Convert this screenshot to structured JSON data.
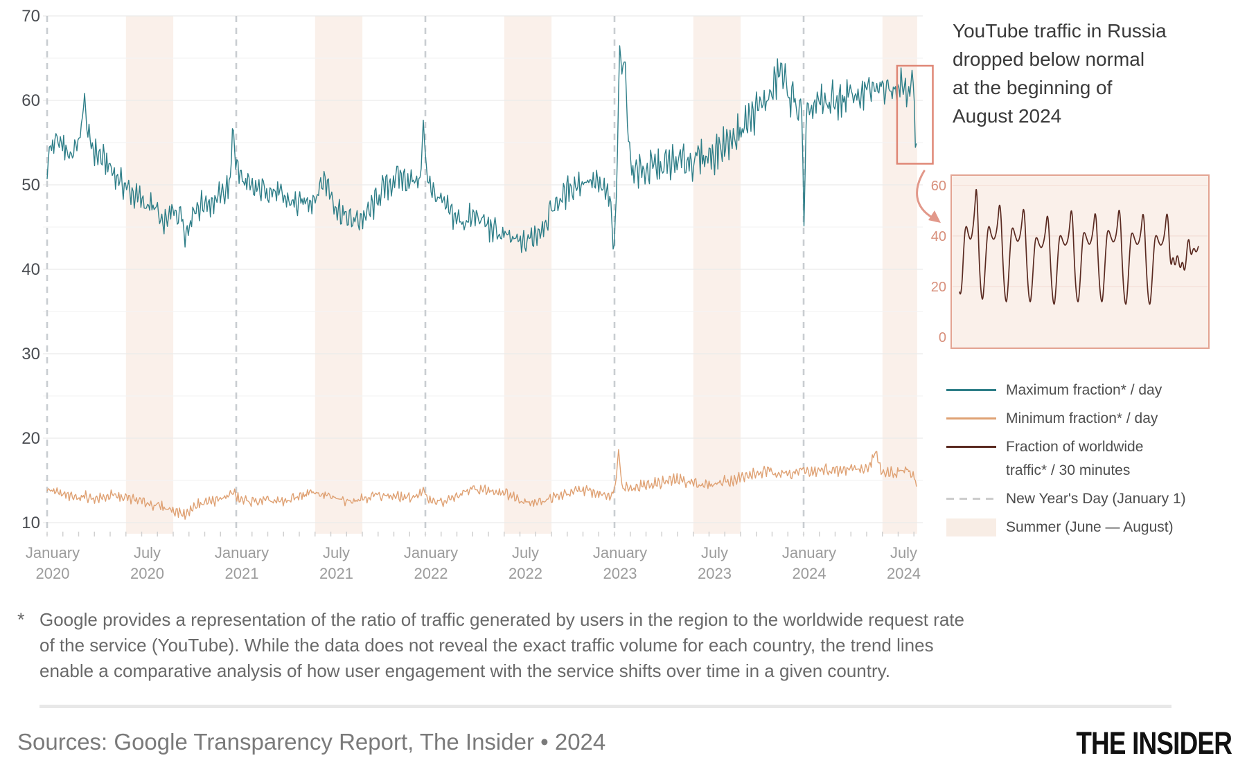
{
  "annotation": {
    "lines": [
      "YouTube traffic in Russia",
      "dropped below normal",
      "at the beginning of",
      "August 2024"
    ]
  },
  "legend": {
    "items": [
      {
        "type": "line",
        "color": "#2e7e88",
        "lines": [
          "Maximum fraction* / day"
        ]
      },
      {
        "type": "line",
        "color": "#dfa173",
        "lines": [
          "Minimum fraction* / day"
        ]
      },
      {
        "type": "line",
        "color": "#5a2a21",
        "lines": [
          "Fraction of worldwide",
          "traffic* / 30 minutes"
        ]
      },
      {
        "type": "dashed",
        "color": "#cccccc",
        "lines": [
          "New Year's Day (January 1)"
        ]
      },
      {
        "type": "band",
        "color": "#f8ede5",
        "lines": [
          "Summer (June — August)"
        ]
      }
    ]
  },
  "footnote": {
    "marker": "*",
    "lines": [
      "Google provides a representation of the ratio of traffic generated by users in the region to the worldwide request rate",
      "of the service (YouTube). While the data does not reveal the exact traffic volume for each country, the trend lines",
      "enable a comparative analysis of how user engagement with the service shifts over time in a given country."
    ]
  },
  "sources": "Sources: Google Transparency Report, The Insider • 2024",
  "logo": "THE INSIDER",
  "colors": {
    "max_line": "#2e7e88",
    "min_line": "#dfa173",
    "inset_line": "#5a2a21",
    "new_year_dash": "#c9cdd1",
    "summer_band": "#faf0ea",
    "grid_major": "#ebebeb",
    "grid_minor": "#f4f4f4",
    "month_tick": "#d0d0d0",
    "highlight_box": "#df8776",
    "arrow": "#e2988a",
    "inset_bg": "#faf0ea",
    "inset_border": "#e3a492",
    "inset_grid": "#f3ded5",
    "inset_tick_text": "#d8907c",
    "y_tick_text": "#4a4d52",
    "x_tick_text": "#9c9c9c"
  },
  "chart_data": [
    {
      "type": "line",
      "title": "YouTube traffic in Russia (fraction of worldwide traffic), January 2020 – August 2024",
      "xlabel": "",
      "ylabel": "",
      "ylim": [
        10,
        70
      ],
      "y_ticks": [
        70,
        60,
        50,
        40,
        30,
        20,
        10
      ],
      "x_unit": "months since 2020-01-01",
      "x_range": [
        0,
        55.2
      ],
      "x_ticks": [
        {
          "t": 0,
          "month": "January",
          "year": "2020"
        },
        {
          "t": 6,
          "month": "July",
          "year": "2020"
        },
        {
          "t": 12,
          "month": "January",
          "year": "2021"
        },
        {
          "t": 18,
          "month": "July",
          "year": "2021"
        },
        {
          "t": 24,
          "month": "January",
          "year": "2022"
        },
        {
          "t": 30,
          "month": "July",
          "year": "2022"
        },
        {
          "t": 36,
          "month": "January",
          "year": "2023"
        },
        {
          "t": 42,
          "month": "July",
          "year": "2023"
        },
        {
          "t": 48,
          "month": "January",
          "year": "2024"
        },
        {
          "t": 54,
          "month": "July",
          "year": "2024"
        }
      ],
      "new_year_lines_t": [
        0,
        12,
        24,
        36,
        48
      ],
      "summer_bands_t": [
        [
          5,
          8
        ],
        [
          17,
          20
        ],
        [
          29,
          32
        ],
        [
          41,
          44
        ],
        [
          53,
          55.2
        ]
      ],
      "highlight_box": {
        "t0": 53.93,
        "t1": 56.2,
        "v0": 52.5,
        "v1": 64.1
      },
      "series": [
        {
          "name": "Maximum fraction* / day",
          "color": "#2e7e88",
          "noise_amp": 1.7,
          "noise_amp_late": 2.3,
          "late_from": 36,
          "anchors": [
            [
              0,
              51
            ],
            [
              0.15,
              54.5
            ],
            [
              0.8,
              55
            ],
            [
              1.5,
              53.5
            ],
            [
              2.1,
              55.5
            ],
            [
              2.35,
              60.5
            ],
            [
              2.6,
              55.5
            ],
            [
              3,
              54
            ],
            [
              3.8,
              52.5
            ],
            [
              4.6,
              50.5
            ],
            [
              5.4,
              49
            ],
            [
              6.2,
              47.8
            ],
            [
              7,
              47
            ],
            [
              7.25,
              44.8
            ],
            [
              7.8,
              46.5
            ],
            [
              8.5,
              46.8
            ],
            [
              8.8,
              44
            ],
            [
              9.3,
              47.2
            ],
            [
              10,
              47.8
            ],
            [
              10.8,
              48.3
            ],
            [
              11.4,
              49.6
            ],
            [
              11.65,
              50.5
            ],
            [
              11.78,
              58
            ],
            [
              11.95,
              52.5
            ],
            [
              12.4,
              50.5
            ],
            [
              13,
              49.3
            ],
            [
              14,
              49.6
            ],
            [
              15,
              48.4
            ],
            [
              16,
              47.6
            ],
            [
              17,
              48.6
            ],
            [
              17.6,
              50.8
            ],
            [
              18.4,
              47.2
            ],
            [
              19.3,
              45.6
            ],
            [
              20.3,
              46.4
            ],
            [
              21.3,
              49.4
            ],
            [
              22.3,
              51
            ],
            [
              23.2,
              50.4
            ],
            [
              23.7,
              50.8
            ],
            [
              23.87,
              57.5
            ],
            [
              24.05,
              52
            ],
            [
              24.5,
              49
            ],
            [
              25.4,
              47
            ],
            [
              26.3,
              45.6
            ],
            [
              27.3,
              46.2
            ],
            [
              28.3,
              44.6
            ],
            [
              29.3,
              43.6
            ],
            [
              30.3,
              43
            ],
            [
              31.3,
              44.8
            ],
            [
              32.3,
              47.8
            ],
            [
              33.3,
              49.8
            ],
            [
              34.3,
              50.6
            ],
            [
              35.2,
              49.6
            ],
            [
              35.75,
              48.2
            ],
            [
              35.95,
              41.5
            ],
            [
              36.15,
              50
            ],
            [
              36.32,
              67
            ],
            [
              36.5,
              62.5
            ],
            [
              36.63,
              66.5
            ],
            [
              36.85,
              56
            ],
            [
              37.1,
              52
            ],
            [
              37.8,
              51.6
            ],
            [
              38.6,
              52
            ],
            [
              39.5,
              52.4
            ],
            [
              40.4,
              52.8
            ],
            [
              41.3,
              53
            ],
            [
              42.3,
              53.8
            ],
            [
              43.3,
              55.2
            ],
            [
              44.3,
              57.2
            ],
            [
              45.2,
              59.2
            ],
            [
              46,
              60.8
            ],
            [
              46.5,
              63.8
            ],
            [
              47,
              61
            ],
            [
              47.6,
              59.2
            ],
            [
              47.9,
              58.5
            ],
            [
              48.02,
              44.5
            ],
            [
              48.18,
              58.8
            ],
            [
              48.9,
              59.4
            ],
            [
              49.8,
              59.8
            ],
            [
              50.7,
              60.3
            ],
            [
              51.6,
              60.8
            ],
            [
              52.5,
              61.2
            ],
            [
              53.4,
              61.8
            ],
            [
              54.2,
              62
            ],
            [
              54.8,
              61.6
            ],
            [
              55.0,
              62.2
            ],
            [
              55.06,
              55.2
            ],
            [
              55.12,
              53.5
            ],
            [
              55.2,
              54.6
            ]
          ]
        },
        {
          "name": "Minimum fraction* / day",
          "color": "#dfa173",
          "noise_amp": 0.6,
          "noise_amp_late": 0.7,
          "late_from": 36,
          "anchors": [
            [
              0,
              14
            ],
            [
              0.8,
              13.4
            ],
            [
              1.6,
              13
            ],
            [
              2.4,
              13.1
            ],
            [
              3.2,
              12.8
            ],
            [
              4,
              13.2
            ],
            [
              4.8,
              13
            ],
            [
              5.6,
              12.7
            ],
            [
              6.4,
              12.3
            ],
            [
              7.2,
              11.9
            ],
            [
              8,
              11.5
            ],
            [
              8.8,
              10.9
            ],
            [
              9.4,
              12.1
            ],
            [
              10.2,
              12.5
            ],
            [
              11,
              12.7
            ],
            [
              11.78,
              13.6
            ],
            [
              12.2,
              12.7
            ],
            [
              13,
              12.5
            ],
            [
              14,
              12.6
            ],
            [
              15,
              12.4
            ],
            [
              16,
              13.2
            ],
            [
              17,
              13.6
            ],
            [
              18,
              13
            ],
            [
              19,
              12.6
            ],
            [
              20,
              12.9
            ],
            [
              21,
              13.3
            ],
            [
              22,
              13.1
            ],
            [
              23,
              12.9
            ],
            [
              23.87,
              13.6
            ],
            [
              24.3,
              12.7
            ],
            [
              25.2,
              12.4
            ],
            [
              26.1,
              13.2
            ],
            [
              27,
              14
            ],
            [
              28,
              13.8
            ],
            [
              29,
              13.6
            ],
            [
              30,
              12.7
            ],
            [
              31,
              12.4
            ],
            [
              32,
              12.9
            ],
            [
              33,
              13.4
            ],
            [
              34,
              13.9
            ],
            [
              35,
              13.4
            ],
            [
              35.9,
              13.3
            ],
            [
              36.1,
              15
            ],
            [
              36.25,
              18.6
            ],
            [
              36.5,
              14.2
            ],
            [
              37.3,
              14.2
            ],
            [
              38.2,
              14.5
            ],
            [
              39.1,
              14.8
            ],
            [
              40,
              15.1
            ],
            [
              41,
              14.7
            ],
            [
              42,
              14.4
            ],
            [
              43,
              14.9
            ],
            [
              44,
              15.3
            ],
            [
              45,
              15.8
            ],
            [
              46,
              16.1
            ],
            [
              47,
              15.7
            ],
            [
              48.02,
              16.2
            ],
            [
              48.6,
              15.9
            ],
            [
              49.4,
              16.3
            ],
            [
              50.2,
              16
            ],
            [
              51,
              16.5
            ],
            [
              52,
              16.3
            ],
            [
              52.55,
              18.3
            ],
            [
              52.9,
              16.2
            ],
            [
              53.8,
              15.9
            ],
            [
              54.6,
              16.3
            ],
            [
              55.05,
              15
            ],
            [
              55.2,
              13.9
            ]
          ]
        }
      ]
    },
    {
      "type": "line",
      "name": "Fraction of worldwide traffic* / 30 minutes",
      "color": "#5a2a21",
      "ylim": [
        0,
        64
      ],
      "y_ticks": [
        60,
        40,
        20,
        0
      ],
      "x_range": [
        0,
        100
      ],
      "points": [
        [
          0,
          18
        ],
        [
          0.7,
          14
        ],
        [
          2,
          40
        ],
        [
          2.8,
          45
        ],
        [
          3.8,
          40
        ],
        [
          4.8,
          38
        ],
        [
          5.8,
          44
        ],
        [
          6.6,
          54
        ],
        [
          7.0,
          60
        ],
        [
          7.5,
          53
        ],
        [
          8.3,
          28
        ],
        [
          9.2,
          15
        ],
        [
          10,
          15
        ],
        [
          11.5,
          40
        ],
        [
          12.3,
          45
        ],
        [
          13.3,
          40
        ],
        [
          14.5,
          38
        ],
        [
          15.8,
          43
        ],
        [
          17.0,
          57
        ],
        [
          18.3,
          26
        ],
        [
          19.2,
          14
        ],
        [
          20,
          14
        ],
        [
          21.5,
          41
        ],
        [
          22.3,
          44
        ],
        [
          23.3,
          40
        ],
        [
          24.5,
          37
        ],
        [
          25.8,
          42
        ],
        [
          27.0,
          55
        ],
        [
          28.3,
          25
        ],
        [
          29.2,
          14
        ],
        [
          30,
          14
        ],
        [
          31.5,
          38
        ],
        [
          32.3,
          40
        ],
        [
          33.5,
          36
        ],
        [
          34.5,
          35
        ],
        [
          35.8,
          40
        ],
        [
          37.0,
          52
        ],
        [
          38.3,
          24
        ],
        [
          39.2,
          13
        ],
        [
          40,
          13
        ],
        [
          41.5,
          38
        ],
        [
          42.3,
          41
        ],
        [
          43.5,
          37
        ],
        [
          44.5,
          36
        ],
        [
          45.8,
          40
        ],
        [
          47.0,
          55
        ],
        [
          48.3,
          24
        ],
        [
          49.2,
          14
        ],
        [
          50,
          14
        ],
        [
          51.5,
          40
        ],
        [
          52.3,
          42
        ],
        [
          53.5,
          38
        ],
        [
          54.5,
          36
        ],
        [
          55.8,
          41
        ],
        [
          57.0,
          53
        ],
        [
          58.3,
          24
        ],
        [
          59.2,
          14
        ],
        [
          60,
          14
        ],
        [
          61.5,
          40
        ],
        [
          62.3,
          43
        ],
        [
          63.5,
          39
        ],
        [
          64.5,
          37
        ],
        [
          65.8,
          41
        ],
        [
          67.0,
          55
        ],
        [
          68.3,
          24
        ],
        [
          69.2,
          13
        ],
        [
          70,
          13
        ],
        [
          71.5,
          39
        ],
        [
          72.3,
          42
        ],
        [
          73.5,
          38
        ],
        [
          74.5,
          36
        ],
        [
          75.8,
          40
        ],
        [
          77.0,
          53
        ],
        [
          78.3,
          24
        ],
        [
          79.2,
          13
        ],
        [
          80,
          13
        ],
        [
          81.5,
          38
        ],
        [
          82.3,
          41
        ],
        [
          83.5,
          37
        ],
        [
          84.5,
          36
        ],
        [
          85.8,
          40
        ],
        [
          87.0,
          53
        ],
        [
          88.3,
          26
        ],
        [
          89.3,
          33
        ],
        [
          90.2,
          27
        ],
        [
          91.2,
          34
        ],
        [
          92.3,
          26
        ],
        [
          93.3,
          31
        ],
        [
          94.3,
          24
        ],
        [
          95.8,
          42
        ],
        [
          96.8,
          31
        ],
        [
          98,
          36
        ],
        [
          99,
          33
        ],
        [
          100,
          36
        ]
      ]
    }
  ]
}
